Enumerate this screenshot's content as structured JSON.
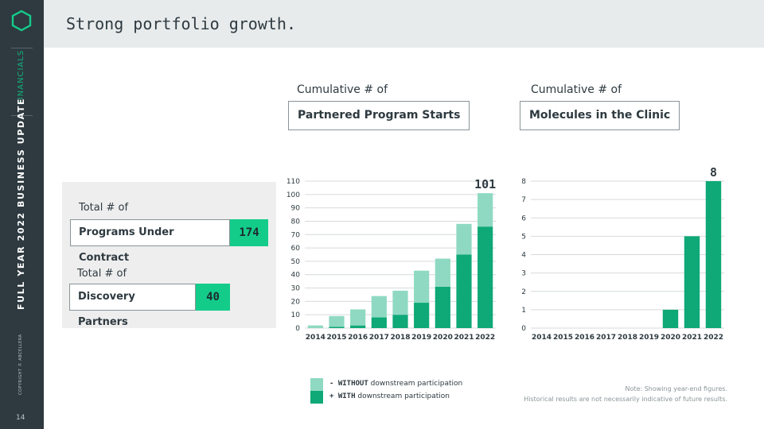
{
  "sidebar": {
    "section": "FINANCIALS",
    "deck_title": "FULL YEAR 2022 BUSINESS UPDATE",
    "copyright": "COPYRIGHT © ABCELLERA",
    "page_number": "14"
  },
  "header": {
    "title": "Strong portfolio growth."
  },
  "stats": [
    {
      "label": "Total # of",
      "name": "Programs Under Contract",
      "value": "174"
    },
    {
      "label": "Total # of",
      "name": "Discovery Partners",
      "value": "40"
    }
  ],
  "chart_data": [
    {
      "type": "bar",
      "stacked": true,
      "label": "Cumulative # of",
      "title": "Partnered Program Starts",
      "categories": [
        "2014",
        "2015",
        "2016",
        "2017",
        "2018",
        "2019",
        "2020",
        "2021",
        "2022"
      ],
      "series": [
        {
          "name": "WITH downstream participation",
          "values": [
            0,
            1,
            2,
            8,
            10,
            19,
            31,
            55,
            76
          ]
        },
        {
          "name": "WITHOUT downstream participation",
          "values": [
            2,
            8,
            12,
            16,
            18,
            24,
            21,
            23,
            25
          ]
        }
      ],
      "totals": [
        2,
        9,
        14,
        24,
        28,
        43,
        52,
        78,
        101
      ],
      "data_label": "101",
      "yticks": [
        "0",
        "10",
        "20",
        "30",
        "40",
        "50",
        "60",
        "70",
        "80",
        "90",
        "100",
        "110"
      ],
      "ylim": [
        0,
        110
      ]
    },
    {
      "type": "bar",
      "label": "Cumulative # of",
      "title": "Molecules in the Clinic",
      "categories": [
        "2014",
        "2015",
        "2016",
        "2017",
        "2018",
        "2019",
        "2020",
        "2021",
        "2022"
      ],
      "values": [
        0,
        0,
        0,
        0,
        0,
        0,
        1,
        5,
        8
      ],
      "data_label": "8",
      "yticks": [
        "0",
        "1",
        "2",
        "3",
        "4",
        "5",
        "6",
        "7",
        "8"
      ],
      "ylim": [
        0,
        8
      ]
    }
  ],
  "legend": [
    {
      "sign": "- WITHOUT",
      "text": "downstream participation",
      "color": "#8fd9c2"
    },
    {
      "sign": "+ WITH",
      "text": "downstream participation",
      "color": "#0fa877"
    }
  ],
  "notes": [
    "Note: Showing year-end figures.",
    "Historical results are not necessarily indicative of future results."
  ],
  "colors": {
    "accent": "#14cc8a",
    "with": "#0fa877",
    "without": "#8fd9c2",
    "sidebar": "#2e3a40"
  }
}
